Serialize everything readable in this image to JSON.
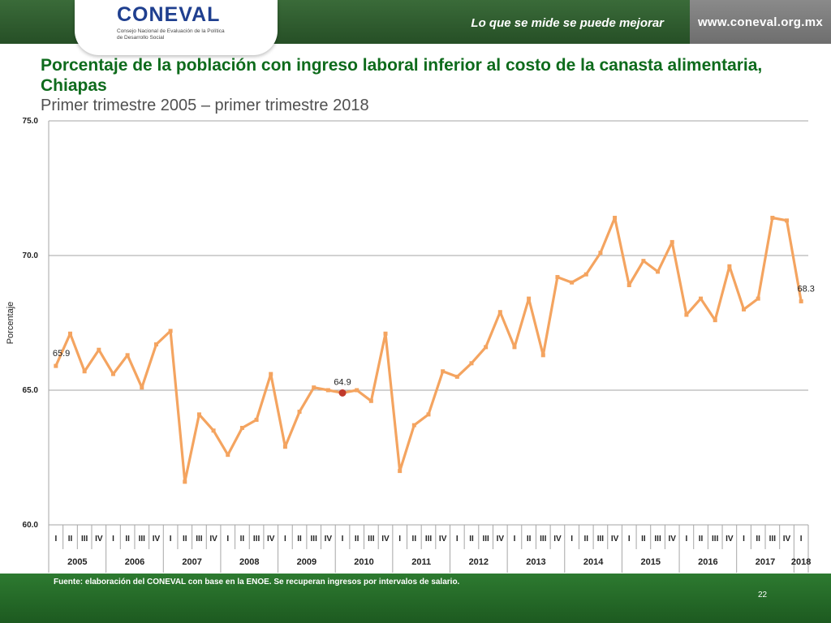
{
  "header": {
    "logo_text": "CONEVAL",
    "logo_subtitle": "Consejo Nacional de Evaluación de la Política de Desarrollo Social",
    "slogan": "Lo que se mide se puede mejorar",
    "url": "www.coneval.org.mx"
  },
  "footer": {
    "source": "Fuente: elaboración del CONEVAL con base en la ENOE. Se recuperan ingresos por intervalos de salario.",
    "page_number": "22"
  },
  "colors": {
    "line": "#f4a460",
    "highlight_point": "#c0392b",
    "title": "#0e6b1c"
  },
  "chart_data": {
    "type": "line",
    "title": "Porcentaje de la población con ingreso laboral inferior al costo de la canasta alimentaria, Chiapas",
    "subtitle": "Primer trimestre 2005 – primer trimestre 2018",
    "ylabel": "Porcentaje",
    "xlabel": "",
    "ylim": [
      60,
      75
    ],
    "yticks": [
      "60.0",
      "65.0",
      "70.0",
      "75.0"
    ],
    "grid": true,
    "quarters": [
      "I",
      "II",
      "III",
      "IV",
      "I",
      "II",
      "III",
      "IV",
      "I",
      "II",
      "III",
      "IV",
      "I",
      "II",
      "III",
      "IV",
      "I",
      "II",
      "III",
      "IV",
      "I",
      "II",
      "III",
      "IV",
      "I",
      "II",
      "III",
      "IV",
      "I",
      "II",
      "III",
      "IV",
      "I",
      "II",
      "III",
      "IV",
      "I",
      "II",
      "III",
      "IV",
      "I",
      "II",
      "III",
      "IV",
      "I",
      "II",
      "III",
      "IV",
      "I",
      "II",
      "III",
      "IV",
      "I"
    ],
    "years": [
      {
        "label": "2005",
        "count": 4
      },
      {
        "label": "2006",
        "count": 4
      },
      {
        "label": "2007",
        "count": 4
      },
      {
        "label": "2008",
        "count": 4
      },
      {
        "label": "2009",
        "count": 4
      },
      {
        "label": "2010",
        "count": 4
      },
      {
        "label": "2011",
        "count": 4
      },
      {
        "label": "2012",
        "count": 4
      },
      {
        "label": "2013",
        "count": 4
      },
      {
        "label": "2014",
        "count": 4
      },
      {
        "label": "2015",
        "count": 4
      },
      {
        "label": "2016",
        "count": 4
      },
      {
        "label": "2017",
        "count": 4
      },
      {
        "label": "2018",
        "count": 1
      }
    ],
    "values": [
      65.9,
      67.1,
      65.7,
      66.5,
      65.6,
      66.3,
      65.1,
      66.7,
      67.2,
      61.6,
      64.1,
      63.5,
      62.6,
      63.6,
      63.9,
      65.6,
      62.9,
      64.2,
      65.1,
      65.0,
      64.9,
      65.0,
      64.6,
      67.1,
      62.0,
      63.7,
      64.1,
      65.7,
      65.5,
      66.0,
      66.6,
      67.9,
      66.6,
      68.4,
      66.3,
      69.2,
      69.0,
      69.3,
      70.1,
      71.4,
      68.9,
      69.8,
      69.4,
      70.5,
      67.8,
      68.4,
      67.6,
      69.6,
      68.0,
      68.4,
      71.4,
      71.3,
      68.3
    ],
    "highlight_index": 20,
    "annotations": [
      {
        "index": 0,
        "text": "65.9"
      },
      {
        "index": 20,
        "text": "64.9"
      },
      {
        "index": 52,
        "text": "68.3"
      }
    ]
  }
}
